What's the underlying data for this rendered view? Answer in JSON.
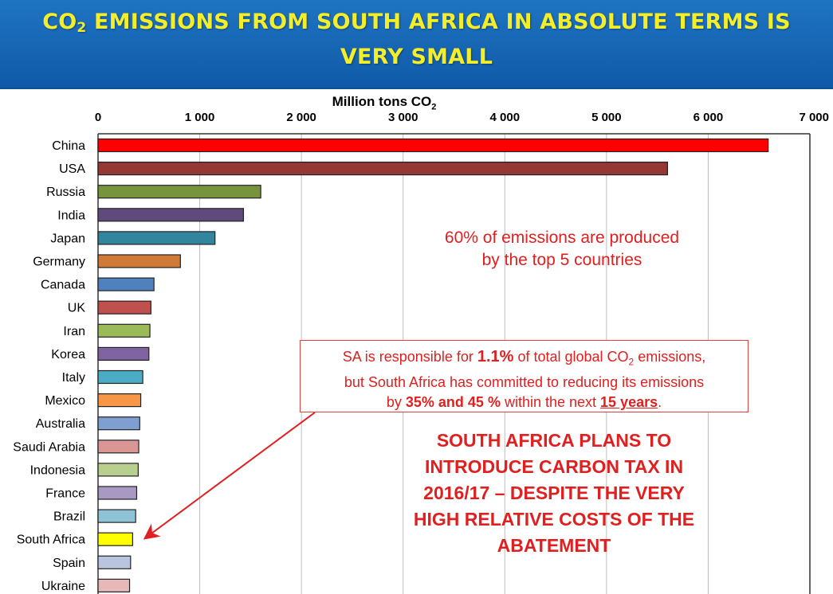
{
  "header": {
    "title_prefix": "CO",
    "title_sub": "2",
    "title_rest": " EMISSIONS FROM SOUTH AFRICA IN ABSOLUTE TERMS IS VERY SMALL"
  },
  "colors": {
    "banner": "#1465b4",
    "title": "#f4ee2a",
    "note": "#e02020"
  },
  "annotations": {
    "top_note": [
      "60% of emissions are produced",
      "by the top 5 countries"
    ],
    "callout": {
      "p1": "SA is responsible for ",
      "p2": "1.1%",
      "p3": " of  total global CO",
      "p3_sub": "2",
      "p4": " emissions,",
      "line2": "but South Africa has committed to reducing its emissions",
      "l3a": "by ",
      "l3b": "35% and 45 %",
      "l3c": " within the next ",
      "l3d": "15 years",
      "l3e": "."
    },
    "tax_note": [
      "SOUTH AFRICA PLANS TO",
      "INTRODUCE CARBON TAX IN",
      "2016/17 – DESPITE THE VERY",
      "HIGH RELATIVE COSTS OF THE",
      "ABATEMENT"
    ]
  },
  "chart_data": {
    "type": "bar",
    "orientation": "horizontal",
    "title": "",
    "xlabel_main": "Million tons CO",
    "xlabel_sub": "2",
    "ylabel": "",
    "xlim": [
      0,
      7000
    ],
    "xticks": [
      0,
      1000,
      2000,
      3000,
      4000,
      5000,
      6000,
      7000
    ],
    "xtick_labels": [
      "0",
      "1 000",
      "2 000",
      "3 000",
      "4 000",
      "5 000",
      "6 000",
      "7 000"
    ],
    "axis_position": "top",
    "grid": true,
    "categories": [
      "China",
      "USA",
      "Russia",
      "India",
      "Japan",
      "Germany",
      "Canada",
      "UK",
      "Iran",
      "Korea",
      "Italy",
      "Mexico",
      "Australia",
      "Saudi Arabia",
      "Indonesia",
      "France",
      "Brazil",
      "South Africa",
      "Spain",
      "Ukraine"
    ],
    "values": [
      6590,
      5600,
      1600,
      1430,
      1150,
      810,
      550,
      520,
      510,
      500,
      440,
      420,
      410,
      400,
      395,
      380,
      370,
      340,
      320,
      310
    ],
    "colors": [
      "#ff0000",
      "#953735",
      "#77933c",
      "#604a7b",
      "#31859c",
      "#d07a3a",
      "#4f81bd",
      "#c0504d",
      "#9bbb59",
      "#8064a2",
      "#4bacc6",
      "#f79646",
      "#7f9fd0",
      "#d99694",
      "#b9cf8f",
      "#a899c2",
      "#8ec3d6",
      "#ffff00",
      "#b9c5de",
      "#e6b9b8"
    ]
  }
}
